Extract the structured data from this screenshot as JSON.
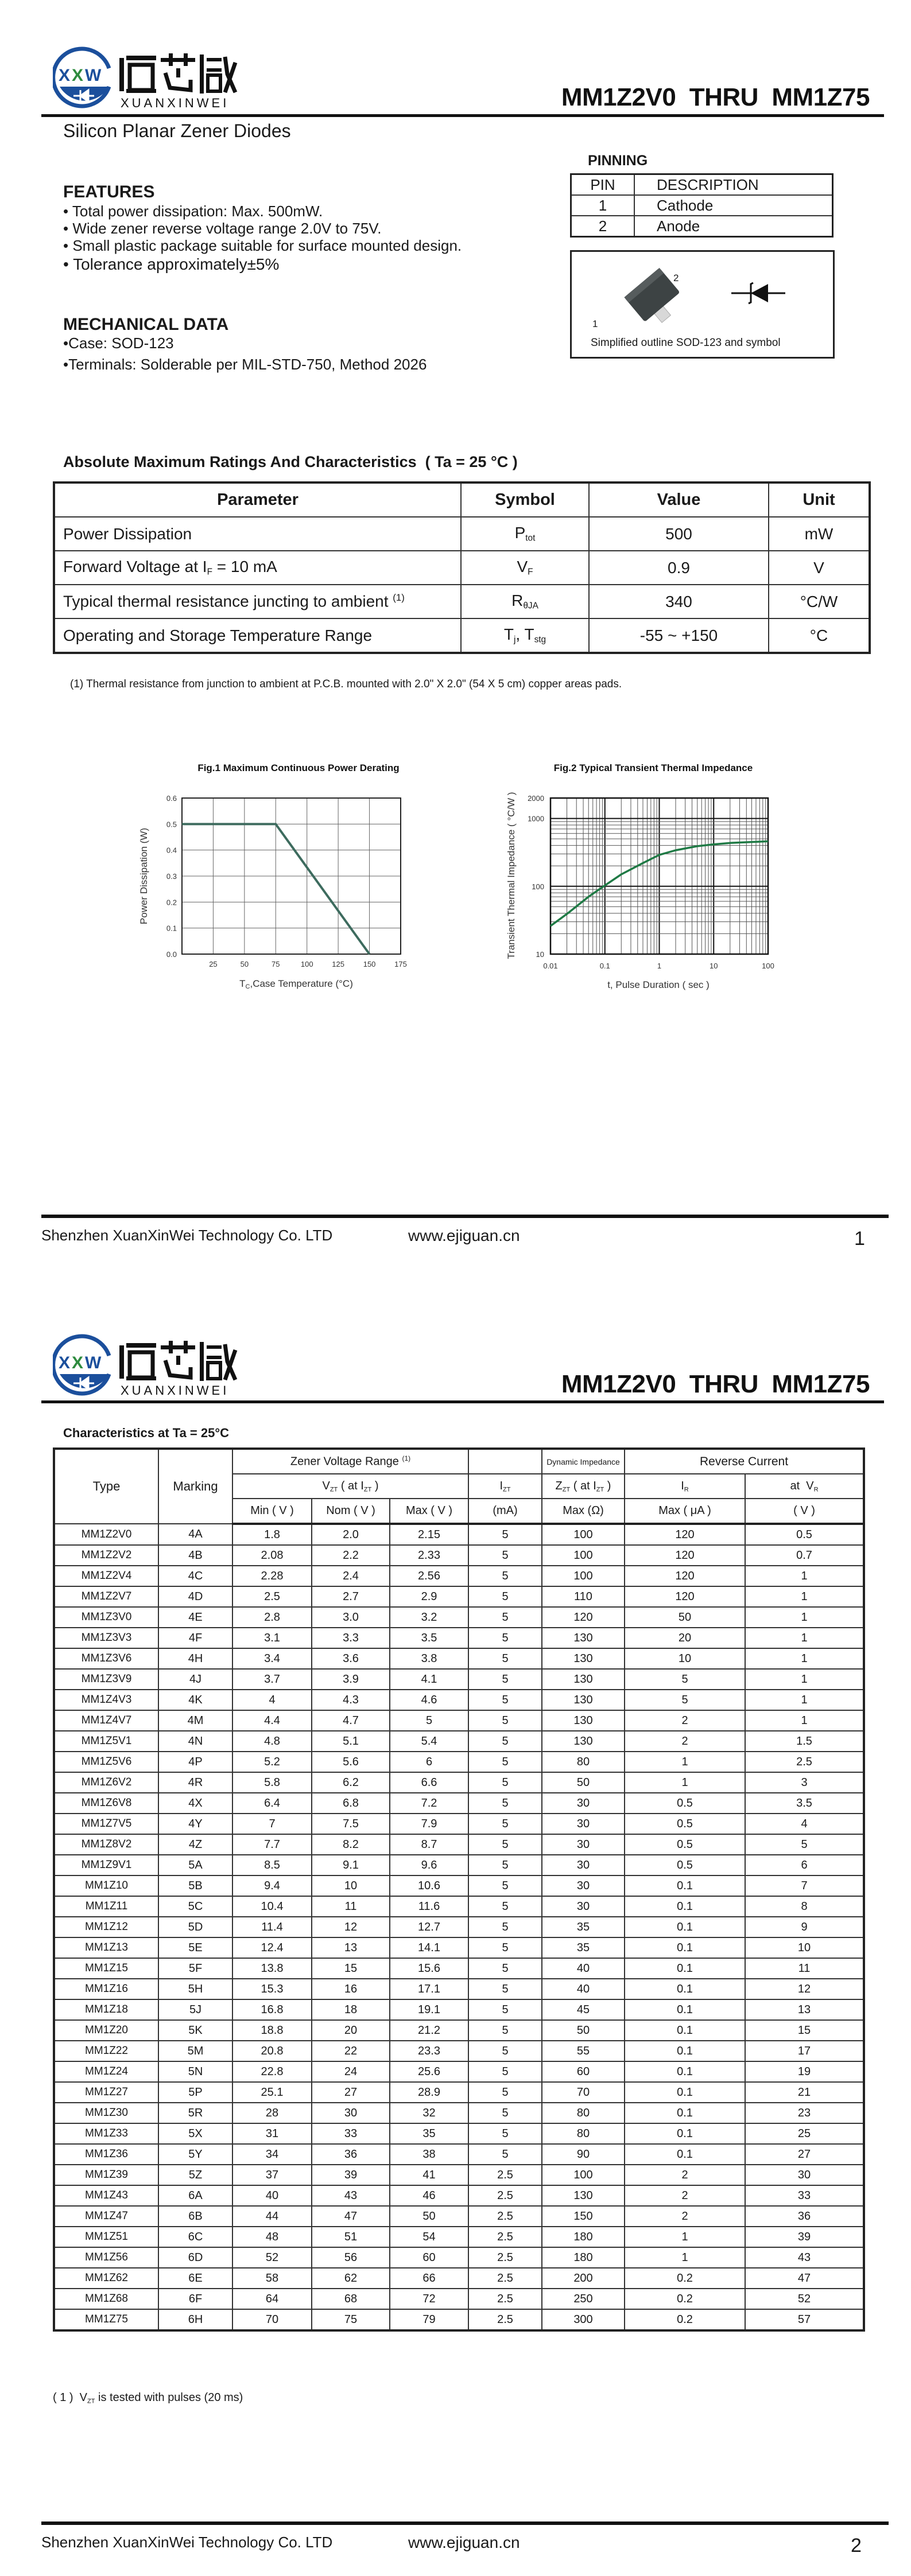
{
  "header": {
    "logo_text_cn": "烜芯微",
    "logo_text_en": "XUANXINWEI",
    "logo_mark": "XXW",
    "title": "MM1Z2V0  THRU  MM1Z75",
    "brand_blue": "#1b4f9c",
    "brand_green": "#2e8b3e"
  },
  "page1": {
    "subtitle": "Silicon Planar Zener Diodes",
    "features": {
      "heading": "FEATURES",
      "items": [
        "• Total power dissipation: Max. 500mW.",
        "• Wide zener reverse voltage range 2.0V to 75V.",
        "• Small plastic package suitable for surface mounted design.",
        "• Tolerance approximately±5%"
      ]
    },
    "mechanical": {
      "heading": "MECHANICAL DATA",
      "items": [
        "•Case: SOD-123",
        "•Terminals: Solderable per MIL-STD-750, Method 2026"
      ]
    },
    "pinning": {
      "heading": "PINNING",
      "headers": [
        "PIN",
        "DESCRIPTION"
      ],
      "rows": [
        [
          "1",
          "Cathode"
        ],
        [
          "2",
          "Anode"
        ]
      ],
      "outline_caption": "Simplified outline SOD-123 and symbol",
      "pin_label_1": "1",
      "pin_label_2": "2"
    },
    "abs_max": {
      "title": "Absolute Maximum Ratings And Characteristics  ( Ta = 25 °C )",
      "headers": [
        "Parameter",
        "Symbol",
        "Value",
        "Unit"
      ],
      "rows": [
        {
          "param": "Power Dissipation",
          "param_sub": "",
          "param_post": "",
          "param_sup": "",
          "sym": "P",
          "sym_sub": "tot",
          "sym2": "",
          "sym2_sub": "",
          "value": "500",
          "unit": "mW"
        },
        {
          "param": "Forward Voltage at I",
          "param_sub": "F",
          "param_post": " = 10 mA",
          "param_sup": "",
          "sym": "V",
          "sym_sub": "F",
          "sym2": "",
          "sym2_sub": "",
          "value": "0.9",
          "unit": "V"
        },
        {
          "param": "Typical thermal resistance juncting to ambient ",
          "param_sub": "",
          "param_post": "",
          "param_sup": "(1)",
          "sym": "R",
          "sym_sub": "θJA",
          "sym2": "",
          "sym2_sub": "",
          "value": "340",
          "unit": "°C/W"
        },
        {
          "param": "Operating and Storage Temperature Range",
          "param_sub": "",
          "param_post": "",
          "param_sup": "",
          "sym": "T",
          "sym_sub": "j",
          "sym2": ", T",
          "sym2_sub": "stg",
          "value": "-55 ~ +150",
          "unit": "°C"
        }
      ],
      "footnote": "(1)  Thermal resistance from junction to ambient at P.C.B. mounted with 2.0\" X 2.0\" (54 X 5 cm) copper areas pads."
    }
  },
  "chart_data": [
    {
      "type": "line",
      "title": "Fig.1  Maximum Continuous Power Derating",
      "xlabel_main": "T",
      "xlabel_sub": "C",
      "xlabel_rest": ",Case Temperature (°C)",
      "ylabel": "Power Dissipation (W)",
      "xlim": [
        0,
        175
      ],
      "ylim": [
        0,
        0.6
      ],
      "x_ticks": [
        25,
        50,
        75,
        100,
        125,
        150,
        175
      ],
      "x_tick_labels": [
        "25",
        "50",
        "75",
        "100",
        "125",
        "150",
        "175"
      ],
      "y_ticks": [
        0,
        0.1,
        0.2,
        0.3,
        0.4,
        0.5,
        0.6
      ],
      "y_tick_labels": [
        "0.0",
        "0.1",
        "0.2",
        "0.3",
        "0.4",
        "0.5",
        "0.6"
      ],
      "grid": true,
      "color": "#3d6b5e",
      "x": [
        0,
        75,
        150
      ],
      "y": [
        0.5,
        0.5,
        0
      ]
    },
    {
      "type": "line",
      "title": "Fig.2  Typical Transient Thermal Impedance",
      "xlabel": "t, Pulse Duration ( sec )",
      "ylabel": "Transient Thermal Impedance ( °C/W )",
      "x_scale": "log",
      "y_scale": "log",
      "xlim": [
        0.01,
        100
      ],
      "ylim": [
        10,
        2000
      ],
      "x_ticks": [
        0.01,
        0.1,
        1,
        10,
        100
      ],
      "x_tick_labels": [
        "0.01",
        "0.1",
        "1",
        "10",
        "100"
      ],
      "y_ticks": [
        10,
        100,
        1000,
        2000
      ],
      "y_tick_labels": [
        "10",
        "100",
        "1000",
        "2000"
      ],
      "grid": true,
      "color": "#1f7a45",
      "x": [
        0.01,
        0.02,
        0.05,
        0.1,
        0.2,
        0.5,
        1,
        2,
        5,
        10,
        20,
        50,
        100
      ],
      "y": [
        26,
        39,
        70,
        103,
        150,
        220,
        290,
        340,
        390,
        415,
        435,
        450,
        460
      ]
    }
  ],
  "footer": {
    "company": "Shenzhen XuanXinWei Technology Co. LTD",
    "url": "www.ejiguan.cn",
    "page1": "1",
    "page2": "2"
  },
  "page2": {
    "char_title": "Characteristics at Ta = 25°C",
    "headers": {
      "type": "Type",
      "marking": "Marking",
      "zener_range": "Zener Voltage Range ",
      "zener_range_sup": "(1)",
      "dyn_imp": "Dynamic Impedance",
      "rev_current": "Reverse Current",
      "vzt": {
        "a": "V",
        "s1": "ZT",
        "b": " ( at I",
        "s2": "ZT",
        "c": " )"
      },
      "izt": {
        "a": "I",
        "s1": "ZT"
      },
      "zzt": {
        "a": "Z",
        "s1": "ZT",
        "b": " ( at  I",
        "s2": "ZT",
        "c": " )"
      },
      "ir": {
        "a": "I",
        "s1": "R"
      },
      "vr": {
        "a": "at  V",
        "s1": "R"
      },
      "units": [
        "Min ( V )",
        "Nom ( V )",
        "Max ( V )",
        "(mA)",
        "Max (Ω)",
        "Max ( μA )",
        "( V )"
      ]
    },
    "rows": [
      [
        "MM1Z2V0",
        "4A",
        "1.8",
        "2.0",
        "2.15",
        "5",
        "100",
        "120",
        "0.5"
      ],
      [
        "MM1Z2V2",
        "4B",
        "2.08",
        "2.2",
        "2.33",
        "5",
        "100",
        "120",
        "0.7"
      ],
      [
        "MM1Z2V4",
        "4C",
        "2.28",
        "2.4",
        "2.56",
        "5",
        "100",
        "120",
        "1"
      ],
      [
        "MM1Z2V7",
        "4D",
        "2.5",
        "2.7",
        "2.9",
        "5",
        "110",
        "120",
        "1"
      ],
      [
        "MM1Z3V0",
        "4E",
        "2.8",
        "3.0",
        "3.2",
        "5",
        "120",
        "50",
        "1"
      ],
      [
        "MM1Z3V3",
        "4F",
        "3.1",
        "3.3",
        "3.5",
        "5",
        "130",
        "20",
        "1"
      ],
      [
        "MM1Z3V6",
        "4H",
        "3.4",
        "3.6",
        "3.8",
        "5",
        "130",
        "10",
        "1"
      ],
      [
        "MM1Z3V9",
        "4J",
        "3.7",
        "3.9",
        "4.1",
        "5",
        "130",
        "5",
        "1"
      ],
      [
        "MM1Z4V3",
        "4K",
        "4",
        "4.3",
        "4.6",
        "5",
        "130",
        "5",
        "1"
      ],
      [
        "MM1Z4V7",
        "4M",
        "4.4",
        "4.7",
        "5",
        "5",
        "130",
        "2",
        "1"
      ],
      [
        "MM1Z5V1",
        "4N",
        "4.8",
        "5.1",
        "5.4",
        "5",
        "130",
        "2",
        "1.5"
      ],
      [
        "MM1Z5V6",
        "4P",
        "5.2",
        "5.6",
        "6",
        "5",
        "80",
        "1",
        "2.5"
      ],
      [
        "MM1Z6V2",
        "4R",
        "5.8",
        "6.2",
        "6.6",
        "5",
        "50",
        "1",
        "3"
      ],
      [
        "MM1Z6V8",
        "4X",
        "6.4",
        "6.8",
        "7.2",
        "5",
        "30",
        "0.5",
        "3.5"
      ],
      [
        "MM1Z7V5",
        "4Y",
        "7",
        "7.5",
        "7.9",
        "5",
        "30",
        "0.5",
        "4"
      ],
      [
        "MM1Z8V2",
        "4Z",
        "7.7",
        "8.2",
        "8.7",
        "5",
        "30",
        "0.5",
        "5"
      ],
      [
        "MM1Z9V1",
        "5A",
        "8.5",
        "9.1",
        "9.6",
        "5",
        "30",
        "0.5",
        "6"
      ],
      [
        "MM1Z10",
        "5B",
        "9.4",
        "10",
        "10.6",
        "5",
        "30",
        "0.1",
        "7"
      ],
      [
        "MM1Z11",
        "5C",
        "10.4",
        "11",
        "11.6",
        "5",
        "30",
        "0.1",
        "8"
      ],
      [
        "MM1Z12",
        "5D",
        "11.4",
        "12",
        "12.7",
        "5",
        "35",
        "0.1",
        "9"
      ],
      [
        "MM1Z13",
        "5E",
        "12.4",
        "13",
        "14.1",
        "5",
        "35",
        "0.1",
        "10"
      ],
      [
        "MM1Z15",
        "5F",
        "13.8",
        "15",
        "15.6",
        "5",
        "40",
        "0.1",
        "11"
      ],
      [
        "MM1Z16",
        "5H",
        "15.3",
        "16",
        "17.1",
        "5",
        "40",
        "0.1",
        "12"
      ],
      [
        "MM1Z18",
        "5J",
        "16.8",
        "18",
        "19.1",
        "5",
        "45",
        "0.1",
        "13"
      ],
      [
        "MM1Z20",
        "5K",
        "18.8",
        "20",
        "21.2",
        "5",
        "50",
        "0.1",
        "15"
      ],
      [
        "MM1Z22",
        "5M",
        "20.8",
        "22",
        "23.3",
        "5",
        "55",
        "0.1",
        "17"
      ],
      [
        "MM1Z24",
        "5N",
        "22.8",
        "24",
        "25.6",
        "5",
        "60",
        "0.1",
        "19"
      ],
      [
        "MM1Z27",
        "5P",
        "25.1",
        "27",
        "28.9",
        "5",
        "70",
        "0.1",
        "21"
      ],
      [
        "MM1Z30",
        "5R",
        "28",
        "30",
        "32",
        "5",
        "80",
        "0.1",
        "23"
      ],
      [
        "MM1Z33",
        "5X",
        "31",
        "33",
        "35",
        "5",
        "80",
        "0.1",
        "25"
      ],
      [
        "MM1Z36",
        "5Y",
        "34",
        "36",
        "38",
        "5",
        "90",
        "0.1",
        "27"
      ],
      [
        "MM1Z39",
        "5Z",
        "37",
        "39",
        "41",
        "2.5",
        "100",
        "2",
        "30"
      ],
      [
        "MM1Z43",
        "6A",
        "40",
        "43",
        "46",
        "2.5",
        "130",
        "2",
        "33"
      ],
      [
        "MM1Z47",
        "6B",
        "44",
        "47",
        "50",
        "2.5",
        "150",
        "2",
        "36"
      ],
      [
        "MM1Z51",
        "6C",
        "48",
        "51",
        "54",
        "2.5",
        "180",
        "1",
        "39"
      ],
      [
        "MM1Z56",
        "6D",
        "52",
        "56",
        "60",
        "2.5",
        "180",
        "1",
        "43"
      ],
      [
        "MM1Z62",
        "6E",
        "58",
        "62",
        "66",
        "2.5",
        "200",
        "0.2",
        "47"
      ],
      [
        "MM1Z68",
        "6F",
        "64",
        "68",
        "72",
        "2.5",
        "250",
        "0.2",
        "52"
      ],
      [
        "MM1Z75",
        "6H",
        "70",
        "75",
        "79",
        "2.5",
        "300",
        "0.2",
        "57"
      ]
    ],
    "footnote": {
      "a": "( 1 )  V",
      "s1": "ZT",
      "b": " is tested with pulses (20 ms)"
    }
  }
}
